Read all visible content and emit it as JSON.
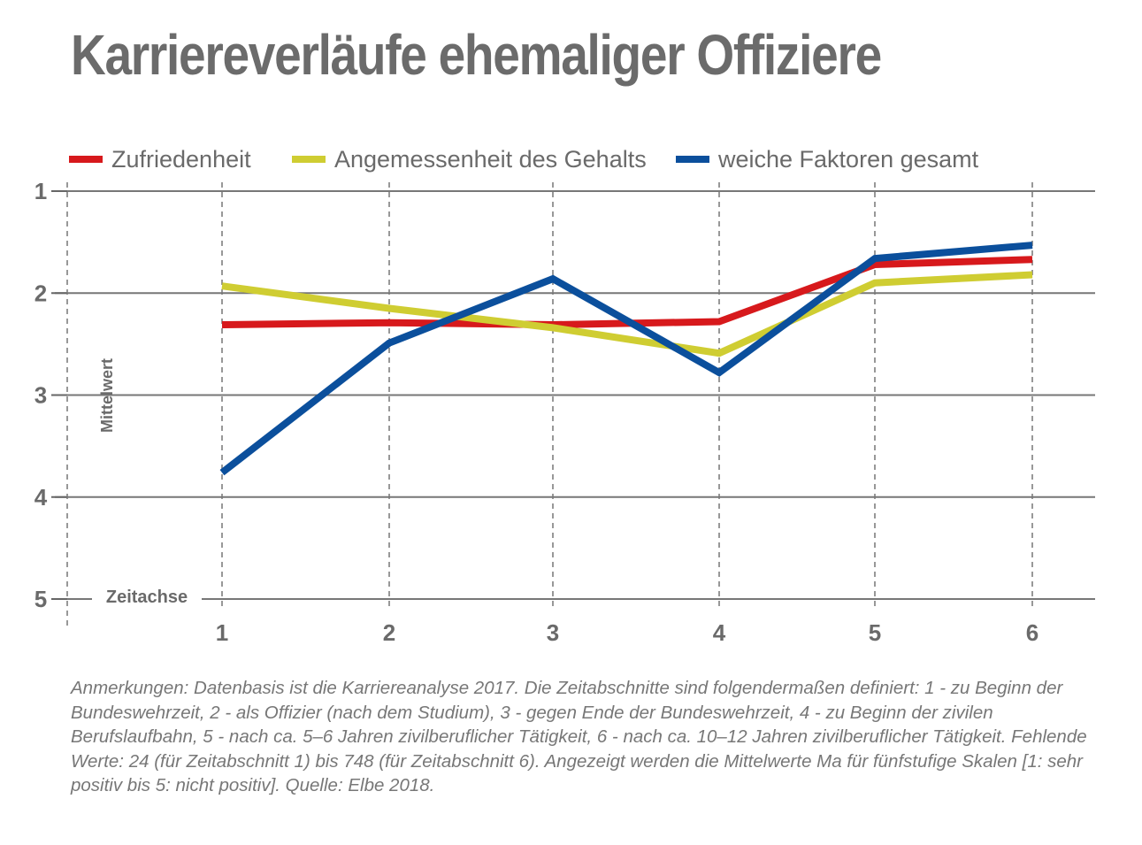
{
  "title": "Karriereverläufe ehemaliger Offiziere",
  "notes": "Anmerkungen: Datenbasis ist die Karriereanalyse 2017. Die Zeitabschnitte sind folgendermaßen definiert: 1 - zu Beginn der Bundeswehrzeit, 2 - als Offizier (nach dem Studium), 3 - gegen Ende der Bundeswehrzeit, 4 - zu Beginn der zivilen Berufslaufbahn, 5 - nach ca. 5–6 Jahren zivilberuflicher Tätigkeit, 6 - nach ca. 10–12 Jahren zivilberuflicher Tätigkeit. Fehlende Werte: 24 (für Zeitabschnitt 1) bis 748 (für Zeitabschnitt 6). Angezeigt werden die Mittelwerte Ma für fünfstufige Skalen [1: sehr positiv bis 5: nicht positiv]. Quelle: Elbe 2018.",
  "chart_data": {
    "type": "line",
    "title": "Karriereverläufe ehemaliger Offiziere",
    "xlabel": "Zeitachse",
    "ylabel": "Mittelwert",
    "x": [
      1,
      2,
      3,
      4,
      5,
      6
    ],
    "x_ticks": [
      "1",
      "2",
      "3",
      "4",
      "5",
      "6"
    ],
    "y_ticks": [
      "1",
      "2",
      "3",
      "4",
      "5"
    ],
    "ylim": [
      1,
      5
    ],
    "y_inverted": true,
    "grid": true,
    "legend_position": "top-left",
    "series": [
      {
        "name": "Zufriedenheit",
        "color": "#d7191c",
        "values": [
          2.31,
          2.29,
          2.31,
          2.28,
          1.72,
          1.67
        ]
      },
      {
        "name": "Angemessenheit des Gehalts",
        "color": "#cfcd32",
        "values": [
          1.93,
          2.15,
          2.34,
          2.59,
          1.9,
          1.82
        ]
      },
      {
        "name": "weiche Faktoren gesamt",
        "color": "#0b4f9c",
        "values": [
          3.76,
          2.49,
          1.86,
          2.78,
          1.66,
          1.53
        ]
      }
    ]
  }
}
